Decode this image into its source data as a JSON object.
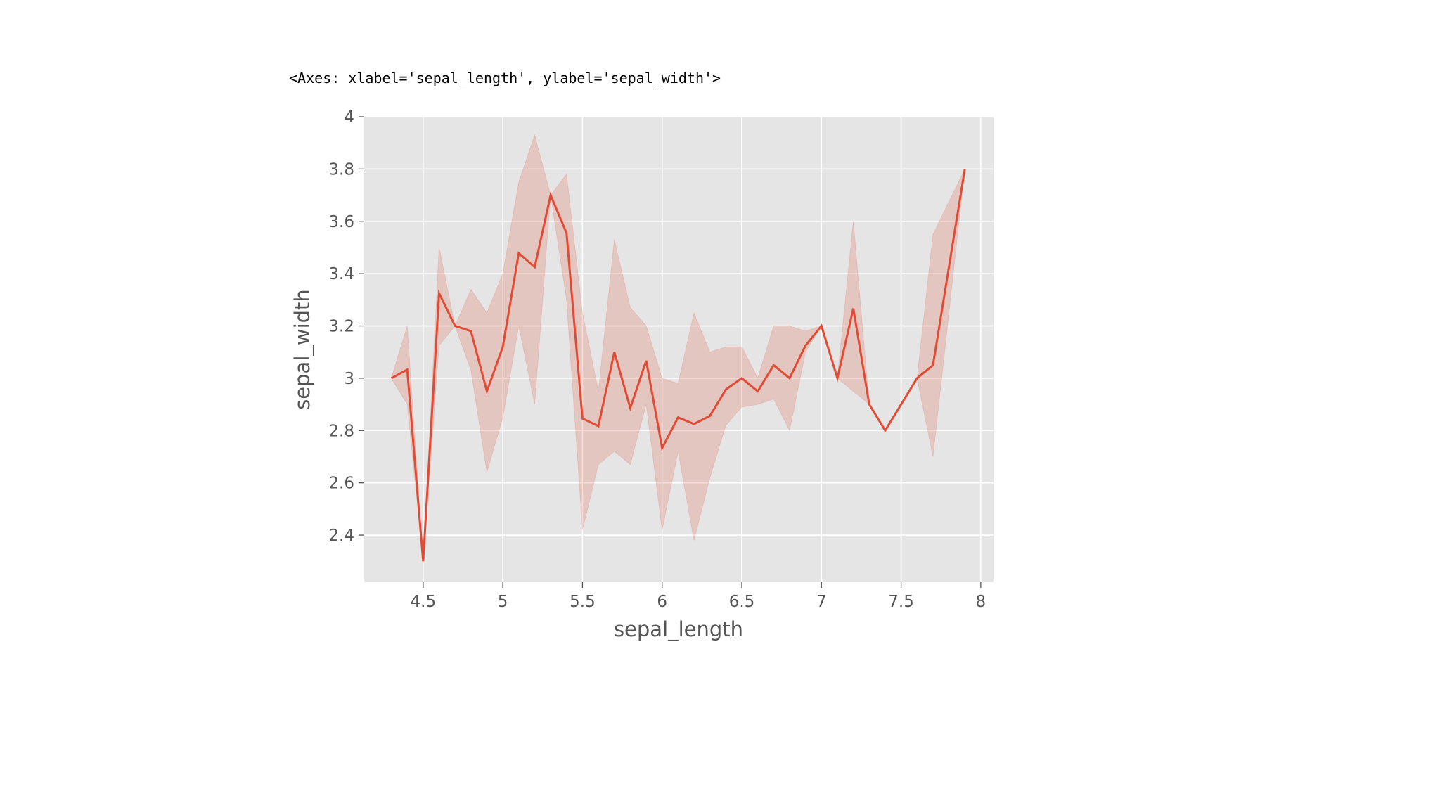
{
  "chart_data": {
    "type": "line",
    "title": "<Axes: xlabel='sepal_length', ylabel='sepal_width'>",
    "x_label": "sepal_length",
    "y_label": "sepal_width",
    "x": [
      4.3,
      4.4,
      4.5,
      4.6,
      4.7,
      4.8,
      4.9,
      5.0,
      5.1,
      5.2,
      5.3,
      5.4,
      5.5,
      5.6,
      5.7,
      5.8,
      5.9,
      6.0,
      6.1,
      6.2,
      6.3,
      6.4,
      6.5,
      6.6,
      6.7,
      6.8,
      6.9,
      7.0,
      7.1,
      7.2,
      7.3,
      7.4,
      7.6,
      7.7,
      7.9
    ],
    "series": [
      {
        "color": "#e24a33",
        "values": [
          3.0,
          3.033,
          2.3,
          3.325,
          3.2,
          3.18,
          2.95,
          3.12,
          3.478,
          3.425,
          3.7,
          3.555,
          2.846,
          2.817,
          3.1,
          2.886,
          3.067,
          2.733,
          2.85,
          2.825,
          2.856,
          2.957,
          3.0,
          2.95,
          3.05,
          3.0,
          3.125,
          3.2,
          3.0,
          3.267,
          2.9,
          2.8,
          3.0,
          3.05,
          3.8
        ]
      }
    ],
    "band": {
      "color": "#e24a33",
      "lower": [
        3.0,
        2.9,
        2.3,
        3.125,
        3.2,
        3.03,
        2.64,
        2.85,
        3.2,
        2.9,
        3.7,
        3.3,
        2.42,
        2.67,
        2.72,
        2.67,
        2.9,
        2.42,
        2.72,
        2.38,
        2.62,
        2.82,
        2.89,
        2.9,
        2.92,
        2.8,
        3.1,
        3.2,
        3.0,
        2.95,
        2.9,
        2.8,
        3.0,
        2.7,
        3.8
      ],
      "upper": [
        3.0,
        3.2,
        2.3,
        3.5,
        3.2,
        3.34,
        3.25,
        3.4,
        3.75,
        3.93,
        3.7,
        3.78,
        3.25,
        2.95,
        3.53,
        3.27,
        3.2,
        3.0,
        2.98,
        3.25,
        3.1,
        3.12,
        3.12,
        3.0,
        3.2,
        3.2,
        3.18,
        3.2,
        3.0,
        3.6,
        2.9,
        2.8,
        3.0,
        3.55,
        3.8
      ]
    },
    "xlim": [
      4.13,
      8.08
    ],
    "ylim": [
      2.22,
      4.0
    ],
    "xticks": [
      4.5,
      5.0,
      5.5,
      6.0,
      6.5,
      7.0,
      7.5,
      8.0
    ],
    "yticks": [
      2.4,
      2.6,
      2.8,
      3.0,
      3.2,
      3.4,
      3.6,
      3.8,
      4.0
    ],
    "grid": true
  }
}
